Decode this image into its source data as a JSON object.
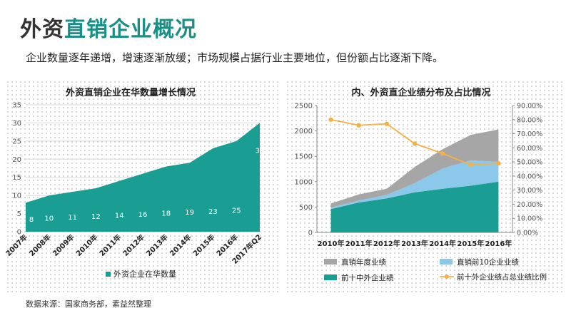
{
  "page": {
    "title_part1": "外资",
    "title_part2": "直销企业概况",
    "subtitle": "企业数量逐年递增，增速逐渐放缓；市场规模占据行业主要地位，但份额占比逐渐下降。",
    "source": "数据来源：国家商务部，素益然整理"
  },
  "colors": {
    "teal": "#1a9e93",
    "light_blue": "#8cc8ea",
    "gray": "#a6a6a6",
    "orange": "#f5b147"
  },
  "chart_data": [
    {
      "type": "area",
      "title": "外资直销企业在华数量增长情况",
      "categories": [
        "2007年",
        "2008年",
        "2009年",
        "2010年",
        "2011年",
        "2012年",
        "2013年",
        "2014年",
        "2015年",
        "2016年",
        "2017年Q2"
      ],
      "series": [
        {
          "name": "外资企业在华数量",
          "values": [
            8,
            10,
            11,
            12,
            14,
            16,
            18,
            19,
            23,
            25,
            30
          ]
        }
      ],
      "yticks": [
        0,
        5,
        10,
        15,
        20,
        25,
        30,
        35
      ],
      "ylim": [
        0,
        35
      ],
      "legend": "bottom",
      "grid": true
    },
    {
      "type": "area",
      "title": "内、外资直企业绩分布及占比情况",
      "categories": [
        "2010年",
        "2011年",
        "2012年",
        "2013年",
        "2014年",
        "2015年",
        "2016年"
      ],
      "stacked": true,
      "series": [
        {
          "name": "前十中外企业绩",
          "values": [
            460,
            590,
            670,
            790,
            860,
            920,
            1000
          ]
        },
        {
          "name": "直销前10企业业绩",
          "values": [
            30,
            40,
            70,
            180,
            400,
            500,
            390
          ]
        },
        {
          "name": "直销年度业绩",
          "values": [
            80,
            120,
            120,
            320,
            380,
            500,
            640
          ]
        }
      ],
      "line_series": {
        "name": "前十外企业绩占总业绩比例",
        "axis": "right",
        "values": [
          0.8,
          0.76,
          0.77,
          0.63,
          0.56,
          0.48,
          0.49
        ]
      },
      "y_left_ticks": [
        0,
        500,
        1000,
        1500,
        2000,
        2500
      ],
      "y_left_lim": [
        0,
        2500
      ],
      "y_right_ticks": [
        "0.00%",
        "10.00%",
        "20.00%",
        "30.00%",
        "40.00%",
        "50.00%",
        "60.00%",
        "70.00%",
        "80.00%",
        "90.00%"
      ],
      "y_right_lim": [
        0,
        0.9
      ],
      "legend": "bottom",
      "grid": false
    }
  ]
}
